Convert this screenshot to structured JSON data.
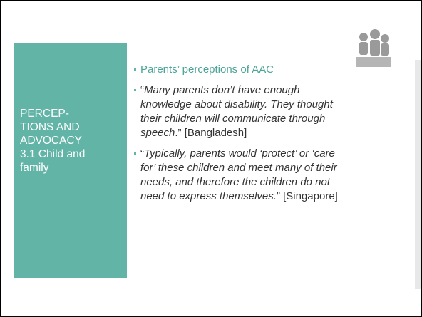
{
  "sidebar": {
    "title_lines": [
      "PERCEP-",
      "TIONS AND",
      "ADVOCACY",
      "3.1 Child and",
      "family"
    ]
  },
  "content": {
    "heading": "Parents’ perceptions of AAC",
    "bullets": [
      {
        "open": "“",
        "quote": "Many parents don’t have enough knowledge about disability. They thought their children will communicate through speech",
        "close": ".”",
        "source": "[Bangladesh]"
      },
      {
        "open": "“",
        "quote": "Typically, parents would ‘protect’ or ‘care for’ these children and meet many of their needs, and therefore the children do not need to express themselves.",
        "close": "”",
        "source": "[Singapore]"
      }
    ]
  }
}
